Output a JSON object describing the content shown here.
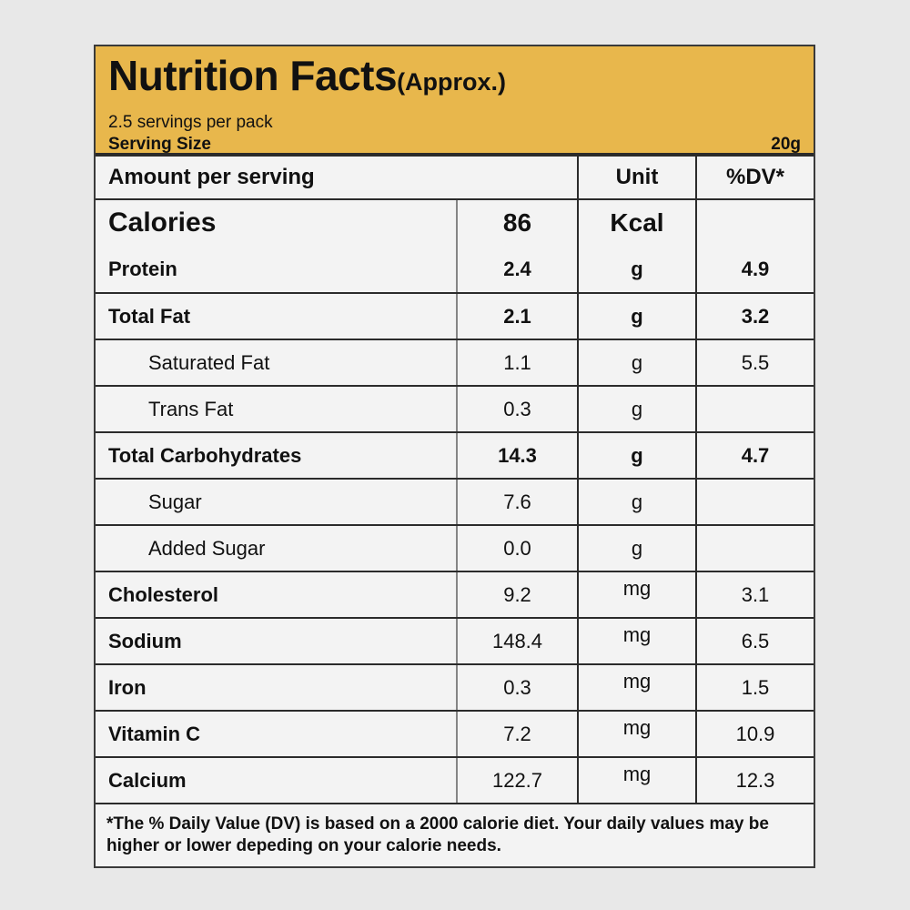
{
  "colors": {
    "header_yellow": "#e8b74c",
    "cell_background": "#f3f3f3",
    "page_background": "#e8e8e8",
    "border_dark": "#2b2b2b",
    "divider_gray": "#858585"
  },
  "header": {
    "title": "Nutrition Facts",
    "approx": "(Approx.)",
    "servings_text": "2.5 servings per pack",
    "serving_size_label": "Serving Size",
    "serving_size_value": "20g"
  },
  "table": {
    "header": {
      "amount_col": "Amount per serving",
      "unit_col": "Unit",
      "dv_col": "%DV*"
    },
    "calories": {
      "label": "Calories",
      "value": "86",
      "unit": "Kcal",
      "dv": ""
    },
    "rows": [
      {
        "label": "Protein",
        "value": "2.4",
        "unit": "g",
        "dv": "4.9",
        "label_bold": true,
        "value_bold": true,
        "indent": false
      },
      {
        "label": "Total Fat",
        "value": "2.1",
        "unit": "g",
        "dv": "3.2",
        "label_bold": true,
        "value_bold": true,
        "indent": false
      },
      {
        "label": "Saturated Fat",
        "value": "1.1",
        "unit": "g",
        "dv": "5.5",
        "label_bold": false,
        "value_bold": false,
        "indent": true
      },
      {
        "label": "Trans Fat",
        "value": "0.3",
        "unit": "g",
        "dv": "",
        "label_bold": false,
        "value_bold": false,
        "indent": true
      },
      {
        "label": "Total Carbohydrates",
        "value": "14.3",
        "unit": "g",
        "dv": "4.7",
        "label_bold": true,
        "value_bold": true,
        "indent": false
      },
      {
        "label": "Sugar",
        "value": "7.6",
        "unit": "g",
        "dv": "",
        "label_bold": false,
        "value_bold": false,
        "indent": true
      },
      {
        "label": "Added Sugar",
        "value": "0.0",
        "unit": "g",
        "dv": "",
        "label_bold": false,
        "value_bold": false,
        "indent": true
      },
      {
        "label": "Cholesterol",
        "value": "9.2",
        "unit": "mg",
        "dv": "3.1",
        "label_bold": true,
        "value_bold": false,
        "indent": false
      },
      {
        "label": "Sodium",
        "value": "148.4",
        "unit": "mg",
        "dv": "6.5",
        "label_bold": true,
        "value_bold": false,
        "indent": false
      },
      {
        "label": "Iron",
        "value": "0.3",
        "unit": "mg",
        "dv": "1.5",
        "label_bold": true,
        "value_bold": false,
        "indent": false
      },
      {
        "label": "Vitamin C",
        "value": "7.2",
        "unit": "mg",
        "dv": "10.9",
        "label_bold": true,
        "value_bold": false,
        "indent": false
      },
      {
        "label": "Calcium",
        "value": "122.7",
        "unit": "mg",
        "dv": "12.3",
        "label_bold": true,
        "value_bold": false,
        "indent": false
      }
    ]
  },
  "footnote": "*The % Daily Value (DV) is based on a 2000 calorie diet. Your daily values may be higher or lower depeding on your calorie needs."
}
